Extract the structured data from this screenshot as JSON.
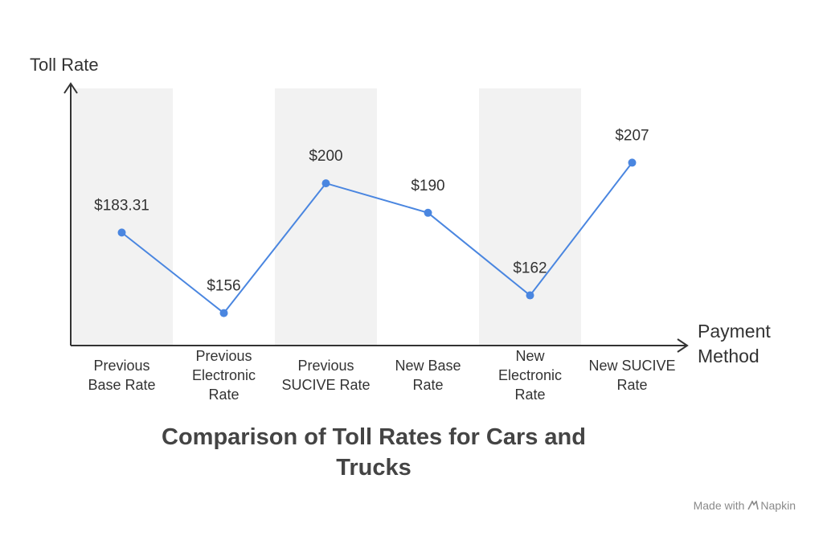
{
  "chart_data": {
    "type": "line",
    "title": "Comparison of Toll Rates for Cars and Trucks",
    "ylabel": "Toll Rate",
    "xlabel": "Payment Method",
    "categories": [
      "Previous Base Rate",
      "Previous Electronic Rate",
      "Previous SUCIVE Rate",
      "New Base Rate",
      "New Electronic Rate",
      "New SUCIVE Rate"
    ],
    "category_lines": [
      [
        "Previous",
        "Base Rate"
      ],
      [
        "Previous",
        "Electronic",
        "Rate"
      ],
      [
        "Previous",
        "SUCIVE Rate"
      ],
      [
        "New Base",
        "Rate"
      ],
      [
        "New",
        "Electronic",
        "Rate"
      ],
      [
        "New SUCIVE",
        "Rate"
      ]
    ],
    "values": [
      183.31,
      156,
      200,
      190,
      162,
      207
    ],
    "data_labels": [
      "$183.31",
      "$156",
      "$200",
      "$190",
      "$162",
      "$207"
    ],
    "ylim": [
      130,
      230
    ],
    "shaded_columns": [
      0,
      2,
      4
    ],
    "grid": false,
    "line_color": "#4a86e0",
    "band_color": "#f2f2f2",
    "axis_color": "#333333"
  },
  "watermark": {
    "text": "Made with",
    "brand": "Napkin"
  }
}
